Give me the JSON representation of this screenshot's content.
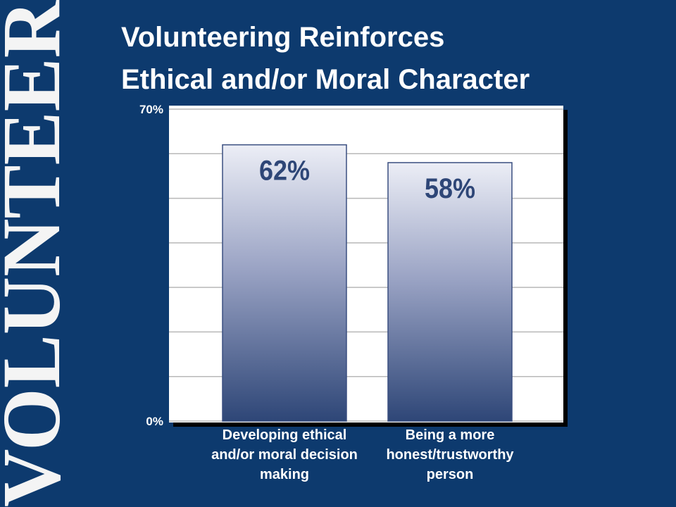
{
  "chart_data": {
    "type": "bar",
    "side_text": "VOLUNTEER",
    "title": [
      "Volunteering Reinforces",
      "Ethical and/or Moral Character"
    ],
    "categories": [
      "Developing ethical and/or moral decision making",
      "Being a more honest/trustworthy person"
    ],
    "values": [
      62,
      58
    ],
    "value_labels": [
      "62%",
      "58%"
    ],
    "color": "#2e4677",
    "ylim": [
      0,
      70
    ],
    "yticks": [
      {
        "value": 0,
        "label": "0%"
      },
      {
        "value": 70,
        "label": "70%"
      }
    ],
    "minor_grid": [
      10,
      20,
      30,
      40,
      50,
      60
    ],
    "grid": true
  }
}
